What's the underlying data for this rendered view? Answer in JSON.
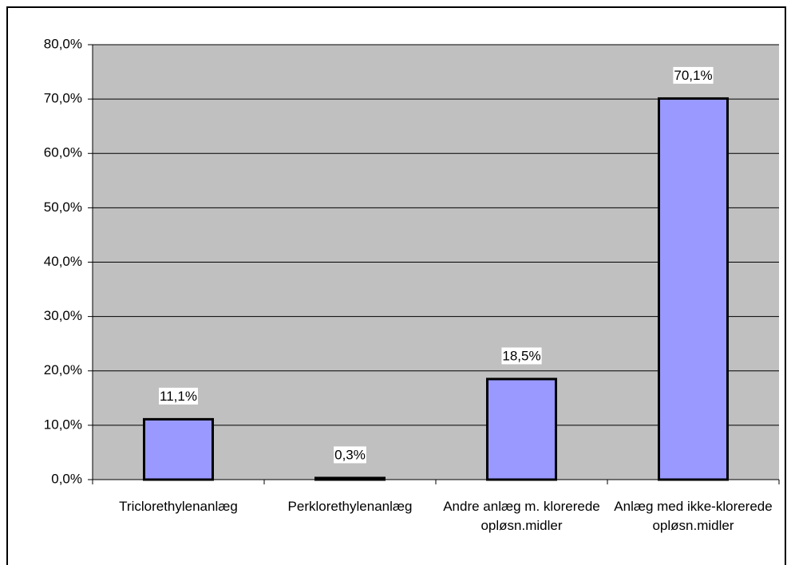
{
  "chart_data": {
    "type": "bar",
    "categories": [
      "Triclorethylenanlæg",
      "Perklorethylenanlæg",
      "Andre anlæg m. klorerede opløsn.midler",
      "Anlæg med ikke-klorerede opløsn.midler"
    ],
    "values": [
      11.1,
      0.3,
      18.5,
      70.1
    ],
    "value_labels": [
      "11,1%",
      "0,3%",
      "18,5%",
      "70,1%"
    ],
    "color": "#9999ff",
    "ylim": [
      0,
      80
    ],
    "yticks": [
      {
        "value": 0,
        "label": "0,0%"
      },
      {
        "value": 10,
        "label": "10,0%"
      },
      {
        "value": 20,
        "label": "20,0%"
      },
      {
        "value": 30,
        "label": "30,0%"
      },
      {
        "value": 40,
        "label": "40,0%"
      },
      {
        "value": 50,
        "label": "50,0%"
      },
      {
        "value": 60,
        "label": "60,0%"
      },
      {
        "value": 70,
        "label": "70,0%"
      },
      {
        "value": 80,
        "label": "80,0%"
      }
    ],
    "grid": true
  }
}
